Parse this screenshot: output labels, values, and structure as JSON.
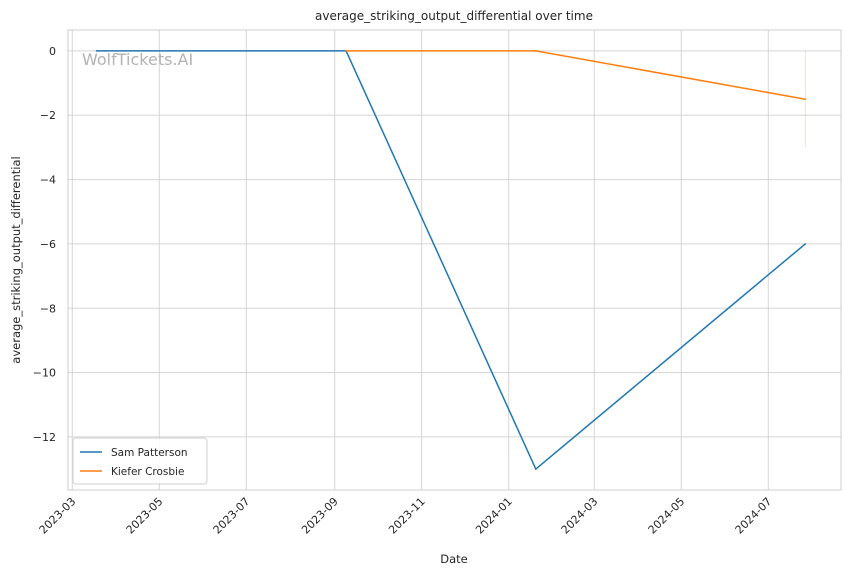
{
  "chart_data": {
    "type": "line",
    "title": "average_striking_output_differential over time",
    "xlabel": "Date",
    "ylabel": "average_striking_output_differential",
    "watermark": "WolfTickets.AI",
    "x_ticks": [
      "2023-03",
      "2023-05",
      "2023-07",
      "2023-09",
      "2023-11",
      "2024-01",
      "2024-03",
      "2024-05",
      "2024-07"
    ],
    "y_ticks": [
      0,
      -2,
      -4,
      -6,
      -8,
      -10,
      -12
    ],
    "y_tick_labels": [
      "0",
      "−2",
      "−4",
      "−6",
      "−8",
      "−10",
      "−12"
    ],
    "xlim": [
      "2023-02-26",
      "2024-08-21"
    ],
    "ylim": [
      -13.65,
      0.65
    ],
    "grid": true,
    "legend_position": "lower-left",
    "series": [
      {
        "name": "Sam Patterson",
        "color": "#1f77b4",
        "points": [
          {
            "x": "2023-03-18",
            "y": 0
          },
          {
            "x": "2023-09-09",
            "y": 0
          },
          {
            "x": "2024-01-20",
            "y": -13
          },
          {
            "x": "2024-07-27",
            "y": -6
          }
        ]
      },
      {
        "name": "Kiefer Crosbie",
        "color": "#ff7f0e",
        "points": [
          {
            "x": "2023-09-09",
            "y": 0
          },
          {
            "x": "2024-01-20",
            "y": 0
          },
          {
            "x": "2024-07-27",
            "y": -1.5
          }
        ],
        "error_band": {
          "x": "2024-07-27",
          "low": -3,
          "high": 0
        }
      }
    ]
  }
}
